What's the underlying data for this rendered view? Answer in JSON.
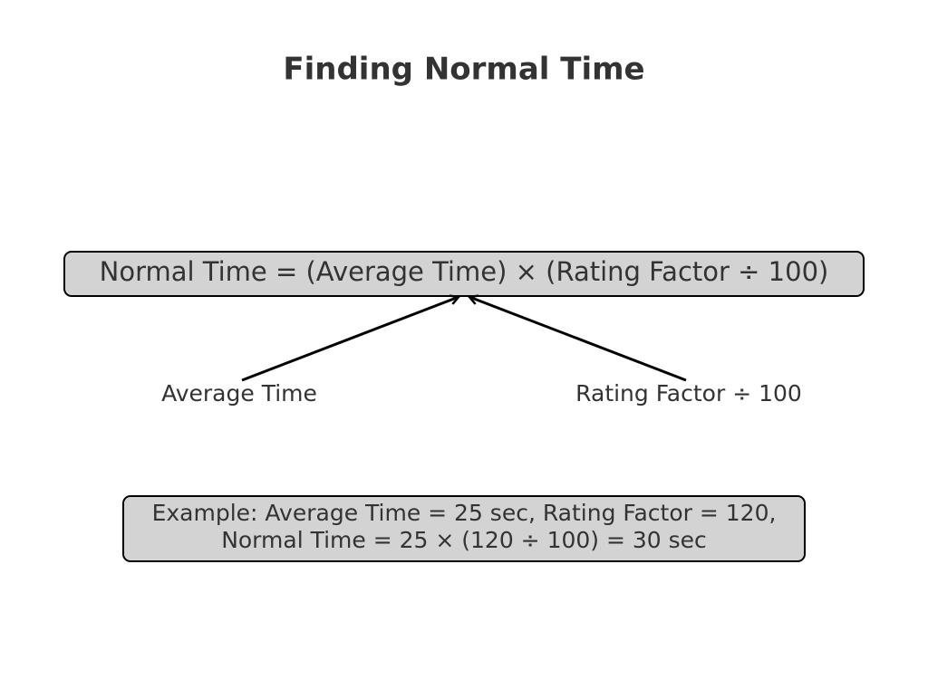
{
  "title": "Finding Normal Time",
  "formula": "Normal Time = (Average Time) × (Rating Factor ÷ 100)",
  "labels": [
    "Average Time",
    "Rating Factor ÷ 100"
  ],
  "example": [
    "Example: Average Time = 25 sec, Rating Factor = 120,",
    "Normal Time = 25 × (120 ÷ 100) = 30 sec"
  ]
}
